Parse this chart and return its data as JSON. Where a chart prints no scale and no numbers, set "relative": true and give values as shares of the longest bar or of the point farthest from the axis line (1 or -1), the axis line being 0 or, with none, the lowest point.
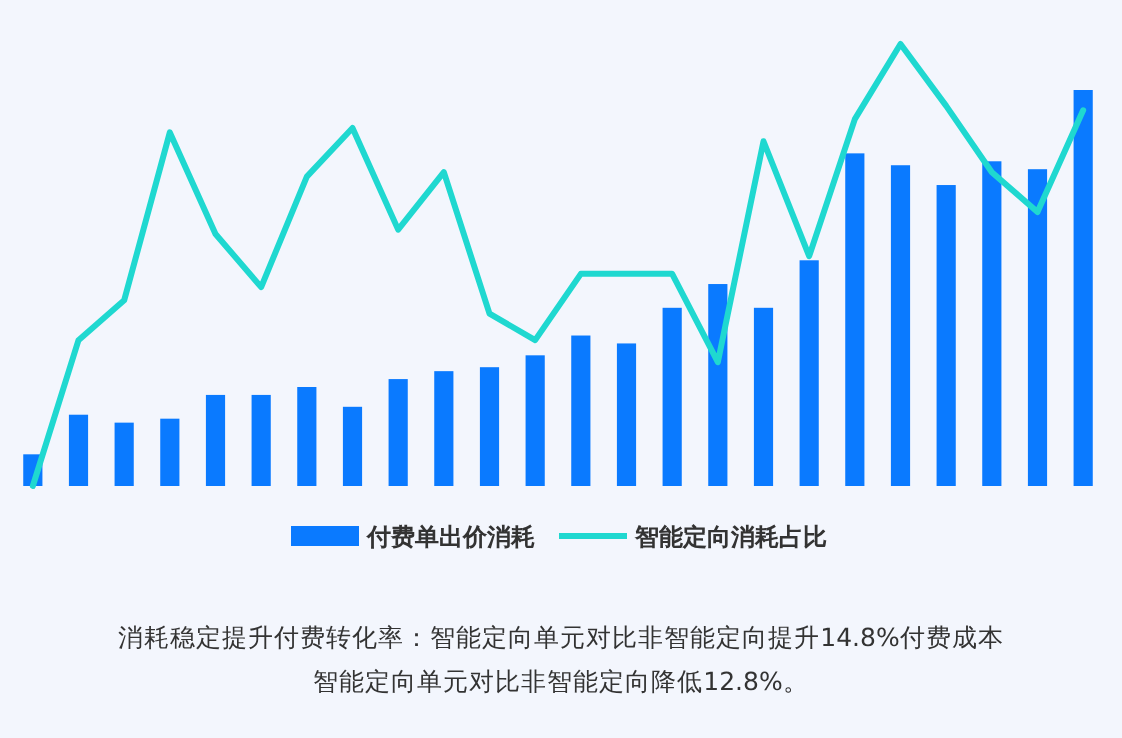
{
  "chart_data": [
    {
      "type": "bar",
      "relative": true,
      "legend": "bottom",
      "categories": [
        null,
        null,
        null,
        null,
        null,
        null,
        null,
        null,
        null,
        null,
        null,
        null,
        null,
        null,
        null,
        null,
        null,
        null,
        null,
        null,
        null,
        null,
        null,
        null
      ],
      "series": [
        {
          "name": "付费单出价消耗",
          "color": "#0a7aff",
          "values": [
            0.08,
            0.18,
            0.16,
            0.17,
            0.23,
            0.23,
            0.25,
            0.2,
            0.27,
            0.29,
            0.3,
            0.33,
            0.38,
            0.36,
            0.45,
            0.51,
            0.45,
            0.57,
            0.84,
            0.81,
            0.76,
            0.82,
            0.8,
            1
          ]
        }
      ],
      "annotations": [
        "消耗稳定提升付费转化率：智能定向单元对比非智能定向提升14.8%付费成本",
        "智能定向单元对比非智能定向降低12.8%。"
      ]
    },
    {
      "type": "line",
      "relative": true,
      "legend": "bottom",
      "categories": [
        null,
        null,
        null,
        null,
        null,
        null,
        null,
        null,
        null,
        null,
        null,
        null,
        null,
        null,
        null,
        null,
        null,
        null,
        null,
        null,
        null,
        null,
        null,
        null
      ],
      "series": [
        {
          "name": "智能定向消耗占比",
          "color": "#1fd8d0",
          "values": [
            0,
            0.33,
            0.42,
            0.8,
            0.57,
            0.45,
            0.7,
            0.81,
            0.58,
            0.71,
            0.39,
            0.33,
            0.48,
            0.48,
            0.48,
            0.28,
            0.78,
            0.52,
            0.83,
            1,
            0.86,
            0.71,
            0.62,
            0.85
          ]
        }
      ]
    }
  ]
}
